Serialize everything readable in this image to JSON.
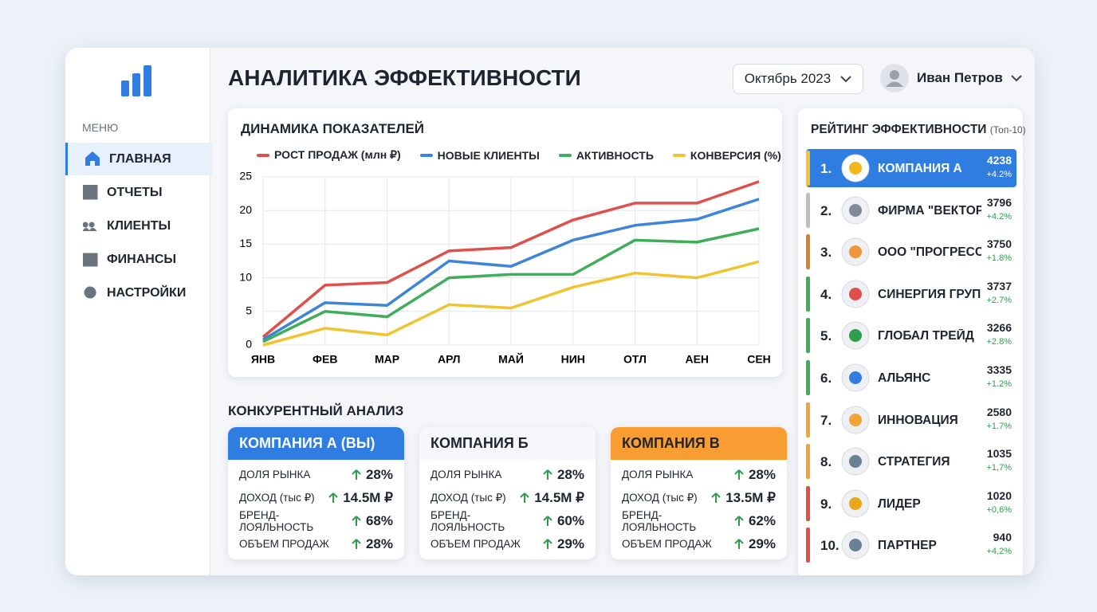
{
  "header": {
    "title": "АНАЛИТИКА ЭФФЕКТИВНОСТИ",
    "period": "Октябрь 2023",
    "user": "Иван Петров"
  },
  "sidebar": {
    "menu_label": "МЕНЮ",
    "items": [
      "ГЛАВНАЯ",
      "ОТЧЕТЫ",
      "КЛИЕНТЫ",
      "ФИНАНСЫ",
      "НАСТРОЙКИ"
    ]
  },
  "chart_data": {
    "type": "line",
    "title": "ДИНАМИКА ПОКАЗАТЕЛЕЙ",
    "categories": [
      "ЯНВ",
      "ФЕВ",
      "МАР",
      "АРЛ",
      "МАЙ",
      "НИН",
      "ОТЛ",
      "АЕН",
      "СЕН"
    ],
    "ylim": [
      0,
      25
    ],
    "yticks": [
      0,
      5,
      10,
      15,
      20,
      25
    ],
    "grid": true,
    "series": [
      {
        "name": "РОСТ ПРОДАЖ (млн ₽)",
        "color": "#e0504a",
        "values": [
          1.2,
          8.9,
          9.3,
          14.0,
          14.5,
          18.6,
          21.1,
          21.1,
          24.3
        ]
      },
      {
        "name": "НОВЫЕ КЛИЕНТЫ",
        "color": "#3d85d8",
        "values": [
          0.8,
          6.3,
          5.9,
          12.5,
          11.7,
          15.6,
          17.8,
          18.7,
          21.7
        ]
      },
      {
        "name": "АКТИВНОСТЬ",
        "color": "#3fad5a",
        "values": [
          0.5,
          5.0,
          4.2,
          10.0,
          10.5,
          10.5,
          15.6,
          15.3,
          17.3
        ]
      },
      {
        "name": "КОНВЕРСИЯ (%)",
        "color": "#f0c431",
        "values": [
          0,
          2.5,
          1.5,
          6.0,
          5.5,
          8.6,
          10.7,
          10.0,
          12.4
        ]
      }
    ]
  },
  "competitive": {
    "title": "КОНКУРЕНТНЫЙ АНАЛИЗ",
    "cards": [
      {
        "name": "КОМПАНИЯ А (ВЫ)",
        "rows": [
          {
            "label": "ДОЛЯ РЫНКА",
            "value": "28%"
          },
          {
            "label": "ДОХОД (тыс ₽)",
            "value": "14.5М ₽"
          },
          {
            "label": "БРЕНД-ЛОЯЛЬНОСТЬ",
            "value": "68%"
          },
          {
            "label": "ОБЪЕМ ПРОДАЖ",
            "value": "28%"
          }
        ]
      },
      {
        "name": "КОМПАНИЯ Б",
        "rows": [
          {
            "label": "ДОЛЯ РЫНКА",
            "value": "28%"
          },
          {
            "label": "ДОХОД (тыс ₽)",
            "value": "14.5М ₽"
          },
          {
            "label": "БРЕНД-ЛОЯЛЬНОСТЬ",
            "value": "60%"
          },
          {
            "label": "ОБЪЕМ ПРОДАЖ",
            "value": "29%"
          }
        ]
      },
      {
        "name": "КОМПАНИЯ В",
        "rows": [
          {
            "label": "ДОЛЯ РЫНКА",
            "value": "28%"
          },
          {
            "label": "ДОХОД (тыс ₽)",
            "value": "13.5М ₽"
          },
          {
            "label": "БРЕНД-ЛОЯЛЬНОСТЬ",
            "value": "62%"
          },
          {
            "label": "ОБЪЕМ ПРОДАЖ",
            "value": "29%"
          }
        ]
      }
    ]
  },
  "ranking": {
    "title": "РЕЙТИНГ ЭФФЕКТИВНОСТИ",
    "subtitle": "(Топ-10)",
    "items": [
      {
        "rank": "1.",
        "name": "КОМПАНИЯ А",
        "score": "4238",
        "change": "+4.2%"
      },
      {
        "rank": "2.",
        "name": "ФИРМА \"ВЕКТОР\"",
        "score": "3796",
        "change": "+4.2%"
      },
      {
        "rank": "3.",
        "name": "ООО \"ПРОГРЕСС\"",
        "score": "3750",
        "change": "+1.8%"
      },
      {
        "rank": "4.",
        "name": "СИНЕРГИЯ ГРУПП",
        "score": "3737",
        "change": "+2.7%"
      },
      {
        "rank": "5.",
        "name": "ГЛОБАЛ ТРЕЙД",
        "score": "3266",
        "change": "+2.8%"
      },
      {
        "rank": "6.",
        "name": "АЛЬЯНС",
        "score": "3335",
        "change": "+1.2%"
      },
      {
        "rank": "7.",
        "name": "ИННОВАЦИЯ",
        "score": "2580",
        "change": "+1.7%"
      },
      {
        "rank": "8.",
        "name": "СТРАТЕГИЯ",
        "score": "1035",
        "change": "+1,7%"
      },
      {
        "rank": "9.",
        "name": "ЛИДЕР",
        "score": "1020",
        "change": "+0,6%"
      },
      {
        "rank": "10.",
        "name": "ПАРТНЕР",
        "score": "940",
        "change": "+4,2%"
      }
    ]
  }
}
